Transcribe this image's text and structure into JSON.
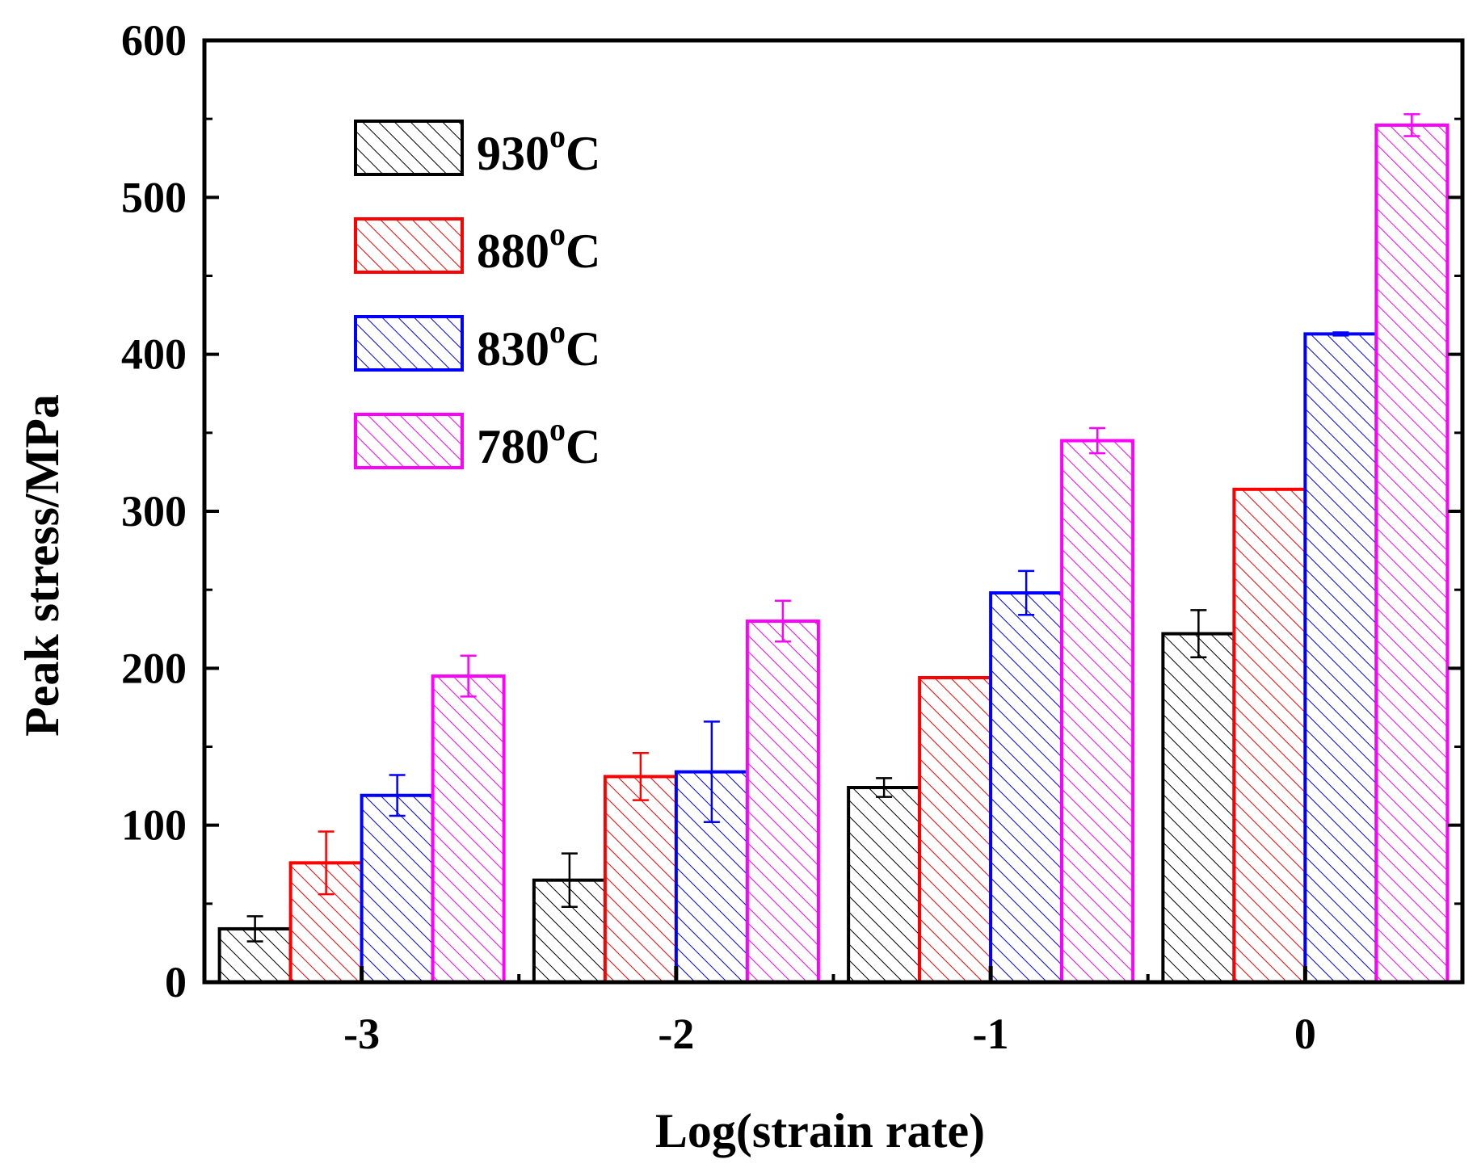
{
  "chart_data": {
    "type": "bar",
    "xlabel": "Log(strain rate)",
    "ylabel": "Peak stress/MPa",
    "categories": [
      "-3",
      "-2",
      "-1",
      "0"
    ],
    "ylim": [
      0,
      600
    ],
    "yticks": [
      0,
      100,
      200,
      300,
      400,
      500,
      600
    ],
    "ytick_labels": [
      "0",
      "100",
      "200",
      "300",
      "400",
      "500",
      "600"
    ],
    "grid": false,
    "legend_position": "top-left",
    "bar_fill": "diagonal hatch",
    "series": [
      {
        "name_value": "930",
        "name_sup": "o",
        "name_unit": "C",
        "color": "#000000",
        "values": [
          34,
          65,
          124,
          222
        ],
        "errors": [
          8,
          17,
          6,
          15
        ]
      },
      {
        "name_value": "880",
        "name_sup": "o",
        "name_unit": "C",
        "color": "#ff0000",
        "values": [
          76,
          131,
          194,
          314
        ],
        "errors": [
          20,
          15,
          0,
          0
        ]
      },
      {
        "name_value": "830",
        "name_sup": "o",
        "name_unit": "C",
        "color": "#0000ff",
        "values": [
          119,
          134,
          248,
          413
        ],
        "errors": [
          13,
          32,
          14,
          1
        ]
      },
      {
        "name_value": "780",
        "name_sup": "o",
        "name_unit": "C",
        "color": "#ff00ff",
        "values": [
          195,
          230,
          345,
          546
        ],
        "errors": [
          13,
          13,
          8,
          7
        ]
      }
    ]
  }
}
